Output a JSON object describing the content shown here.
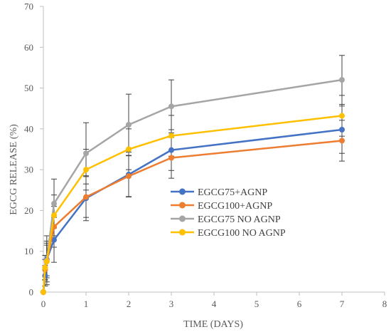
{
  "chart_data": {
    "type": "line",
    "title": "",
    "xlabel": "TIME (DAYS)",
    "ylabel": "EGCG RELEASE (%)",
    "xlim": [
      0,
      8
    ],
    "ylim": [
      0,
      70
    ],
    "xticks": [
      0,
      1,
      2,
      3,
      4,
      5,
      6,
      7,
      8
    ],
    "yticks": [
      0,
      10,
      20,
      30,
      40,
      50,
      60,
      70
    ],
    "grid": false,
    "legend_position": "center-right",
    "x": [
      0,
      0.04,
      0.08,
      0.25,
      1,
      2,
      3,
      7
    ],
    "series": [
      {
        "name": "EGCG75+AGNP",
        "color": "#4472C4",
        "values": [
          0,
          4,
          8,
          12.8,
          23,
          28.8,
          34.8,
          39.8
        ],
        "errors": [
          0,
          2.5,
          4,
          5.5,
          5.5,
          5.5,
          5,
          5.8
        ]
      },
      {
        "name": "EGCG100+AGNP",
        "color": "#ED7D31",
        "values": [
          0,
          5.5,
          7.5,
          16,
          23.3,
          28.4,
          32.9,
          37.1
        ],
        "errors": [
          0,
          2.5,
          4,
          5,
          5,
          5,
          5,
          5
        ]
      },
      {
        "name": "EGCG75 NO AGNP",
        "color": "#A5A5A5",
        "values": [
          0,
          6,
          7.8,
          21.7,
          34,
          41,
          45.5,
          52
        ],
        "errors": [
          0,
          3,
          6,
          6,
          7.5,
          7.5,
          6.5,
          6
        ]
      },
      {
        "name": "EGCG100 NO AGNP",
        "color": "#FFC000",
        "values": [
          0,
          6,
          7.5,
          18.8,
          30,
          35,
          38.3,
          43.2
        ],
        "errors": [
          0,
          3,
          5,
          5,
          5,
          5,
          5,
          5
        ]
      }
    ]
  }
}
